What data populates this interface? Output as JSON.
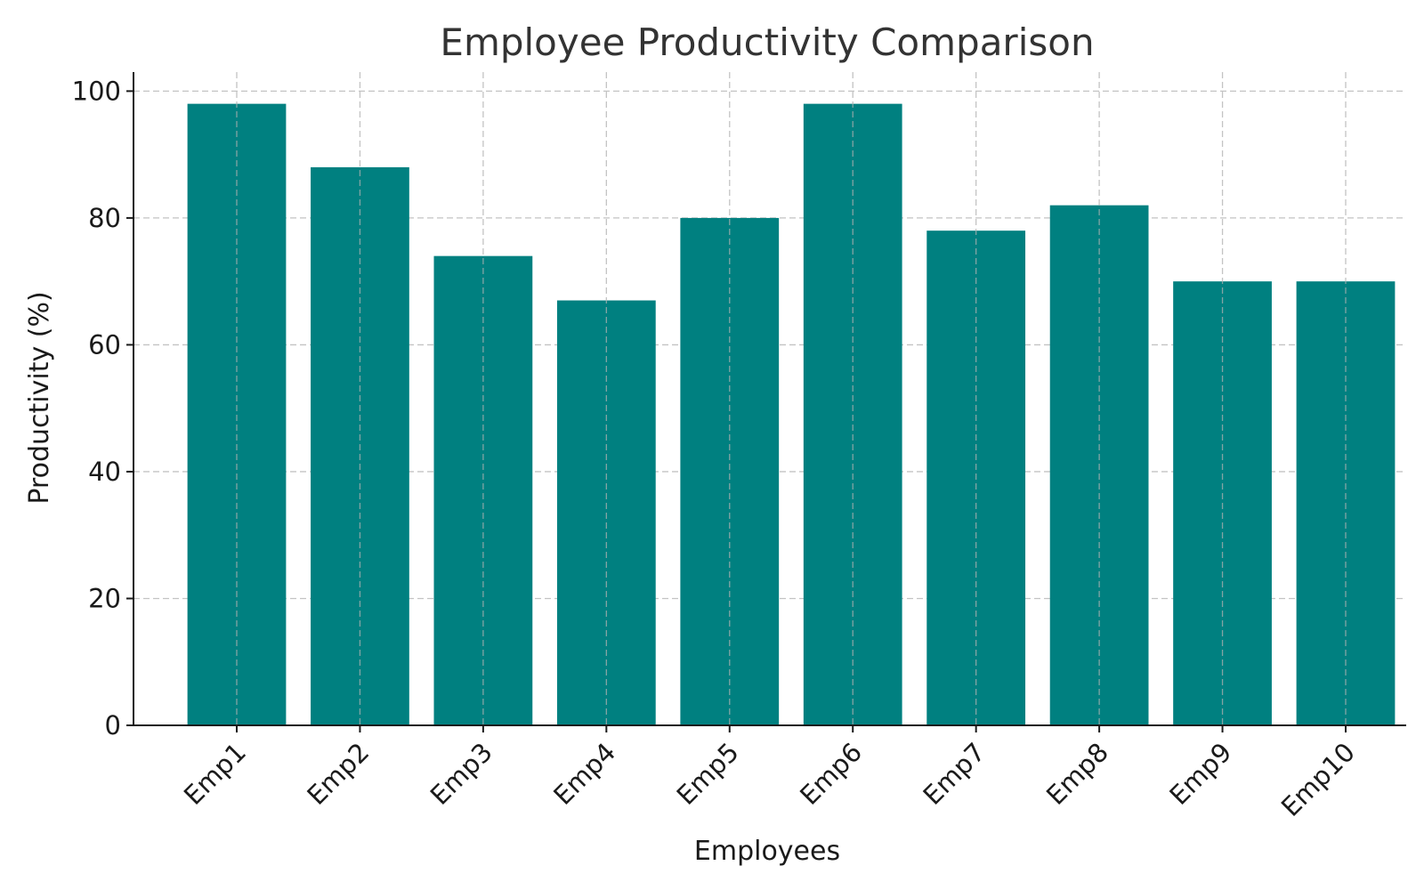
{
  "chart_data": {
    "type": "bar",
    "title": "Employee Productivity Comparison",
    "xlabel": "Employees",
    "ylabel": "Productivity (%)",
    "categories": [
      "Emp1",
      "Emp2",
      "Emp3",
      "Emp4",
      "Emp5",
      "Emp6",
      "Emp7",
      "Emp8",
      "Emp9",
      "Emp10"
    ],
    "values": [
      98,
      88,
      74,
      67,
      80,
      98,
      78,
      82,
      70,
      70
    ],
    "ylim": [
      0,
      103
    ],
    "yticks": [
      0,
      20,
      40,
      60,
      80,
      100
    ],
    "grid": true,
    "bar_color": "#008080",
    "legend": "none"
  }
}
